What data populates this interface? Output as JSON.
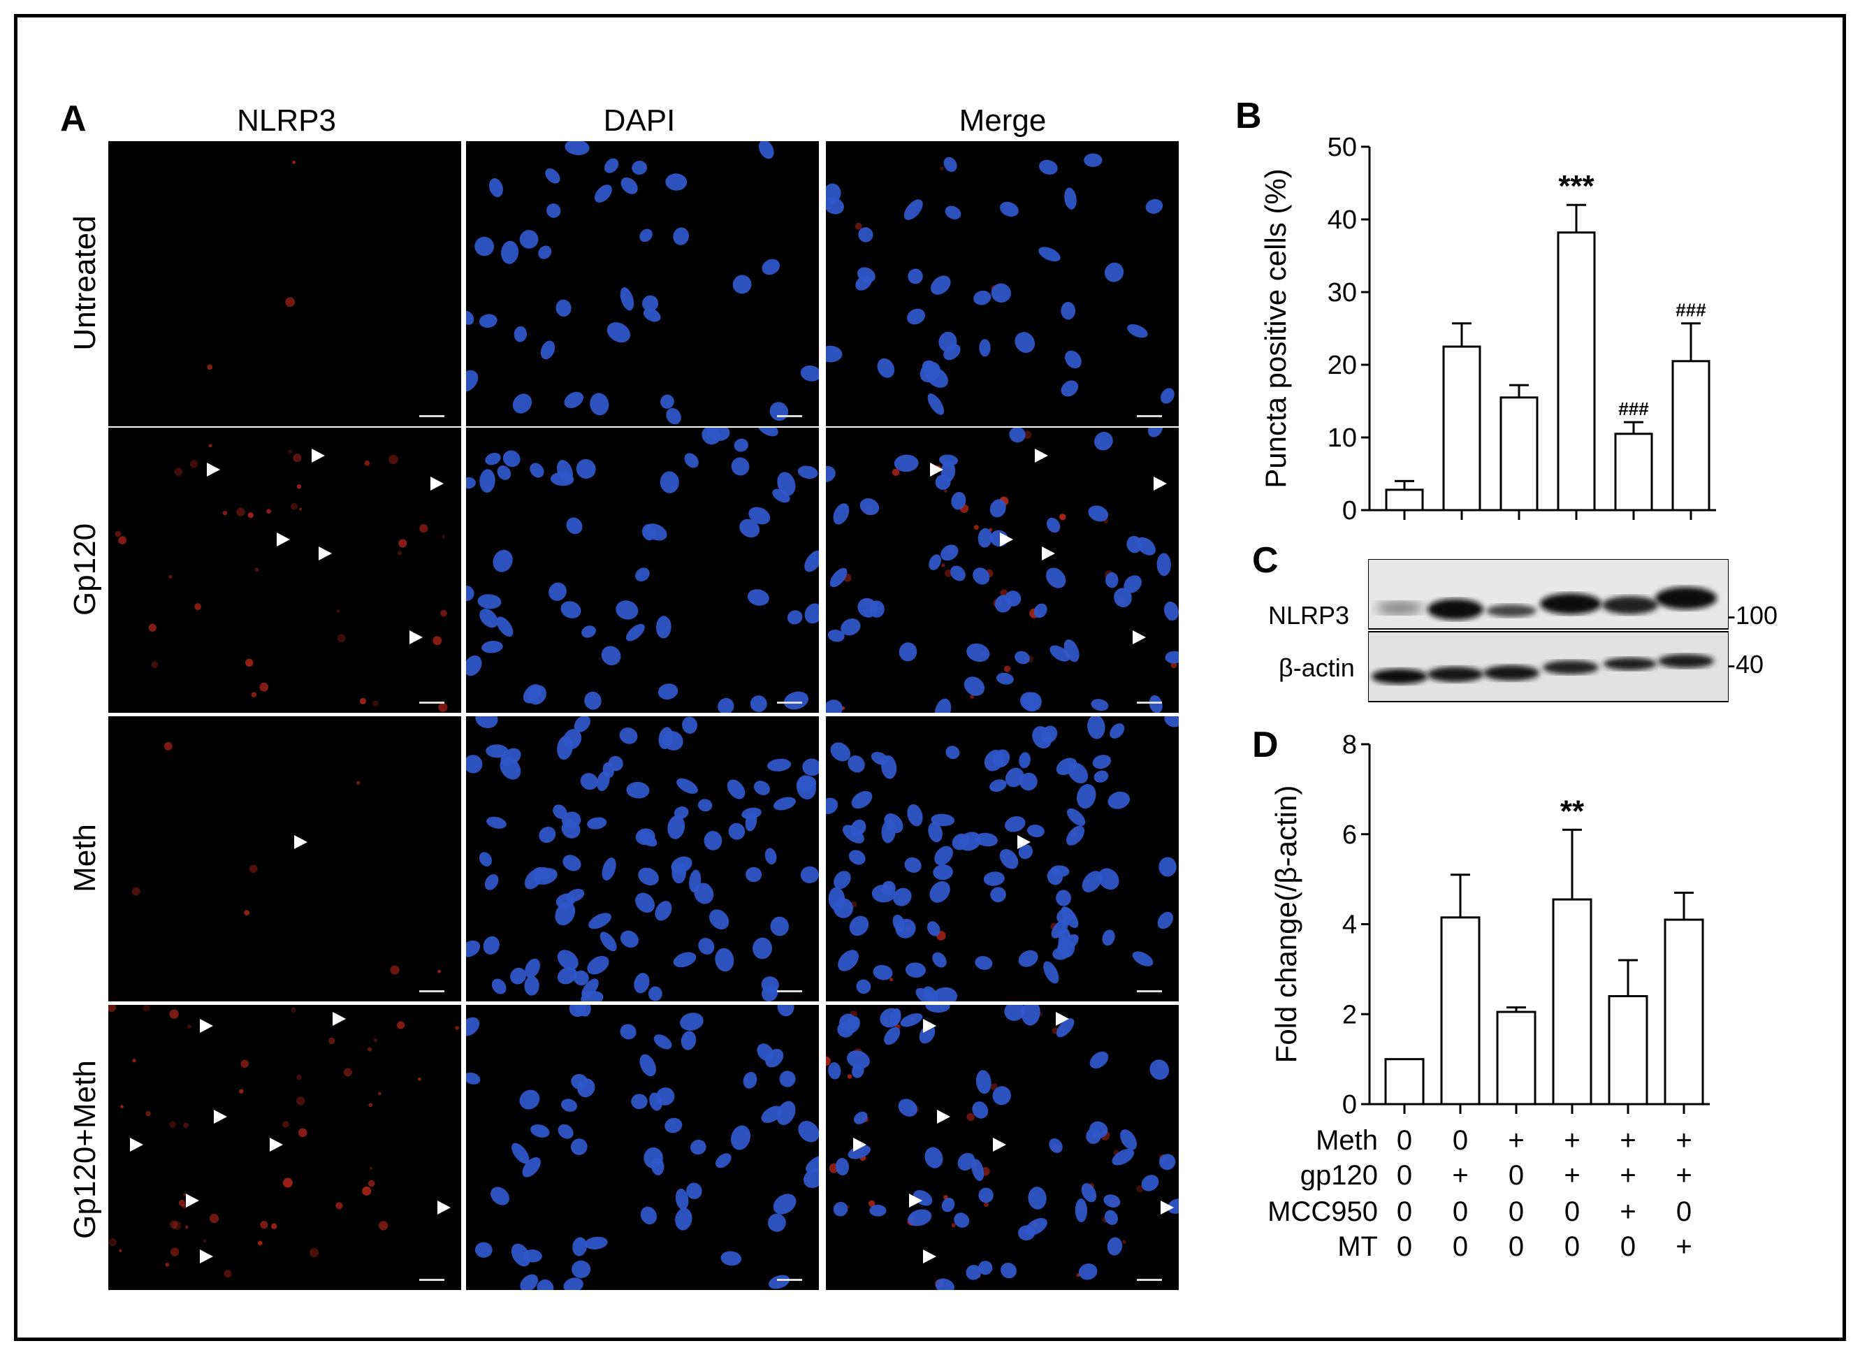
{
  "panelA": {
    "letter": "A",
    "columns": [
      "NLRP3",
      "DAPI",
      "Merge"
    ],
    "rows": [
      "Untreated",
      "Gp120",
      "Meth",
      "Gp120+Meth"
    ]
  },
  "panelB": {
    "letter": "B"
  },
  "panelC": {
    "letter": "C",
    "band_labels": [
      "NLRP3",
      "β-actin"
    ],
    "markers": [
      "-100",
      "-40"
    ]
  },
  "panelD": {
    "letter": "D"
  },
  "treatment_table": {
    "rows": [
      {
        "label": "Meth",
        "values": [
          "0",
          "0",
          "+",
          "+",
          "+",
          "+"
        ]
      },
      {
        "label": "gp120",
        "values": [
          "0",
          "+",
          "0",
          "+",
          "+",
          "+"
        ]
      },
      {
        "label": "MCC950",
        "values": [
          "0",
          "0",
          "0",
          "0",
          "+",
          "0"
        ]
      },
      {
        "label": "MT",
        "values": [
          "0",
          "0",
          "0",
          "0",
          "0",
          "+"
        ]
      }
    ]
  },
  "chart_data": [
    {
      "type": "bar",
      "panel": "B",
      "ylabel": "Puncta positive cells (%)",
      "ylim": [
        0,
        50
      ],
      "yticks": [
        0,
        10,
        20,
        30,
        40,
        50
      ],
      "values": [
        2.8,
        22.5,
        15.5,
        38.2,
        10.5,
        20.5
      ],
      "errors": [
        1.2,
        3.2,
        1.7,
        3.8,
        1.6,
        5.2
      ],
      "annotations": [
        "",
        "",
        "",
        "***",
        "###",
        "###"
      ]
    },
    {
      "type": "bar",
      "panel": "D",
      "ylabel": "Fold change(/β-actin)",
      "ylim": [
        0,
        8
      ],
      "yticks": [
        0,
        2,
        4,
        6,
        8
      ],
      "values": [
        1.0,
        4.15,
        2.05,
        4.55,
        2.4,
        4.1
      ],
      "errors": [
        0,
        0.95,
        0.1,
        1.55,
        0.8,
        0.6
      ],
      "annotations": [
        "",
        "",
        "",
        "**",
        "",
        ""
      ]
    }
  ]
}
